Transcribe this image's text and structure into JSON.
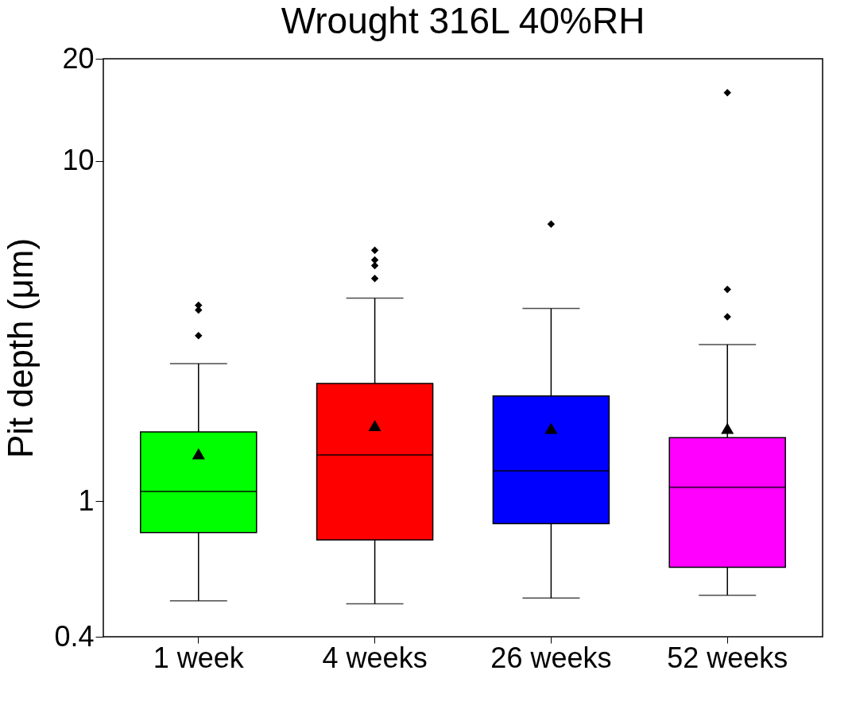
{
  "chart_data": {
    "type": "box",
    "title": "Wrought 316L 40%RH",
    "ylabel": "Pit depth (μm)",
    "categories": [
      "1 week",
      "4 weeks",
      "26 weeks",
      "52 weeks"
    ],
    "colors": [
      "#00ff00",
      "#ff0000",
      "#0000ff",
      "#ff00ff"
    ],
    "boxes": [
      {
        "low": 0.51,
        "q1": 0.81,
        "median": 1.07,
        "q3": 1.6,
        "high": 2.54,
        "mean": 1.38,
        "outliers": [
          3.77,
          3.65,
          3.07
        ]
      },
      {
        "low": 0.5,
        "q1": 0.77,
        "median": 1.37,
        "q3": 2.22,
        "high": 3.96,
        "mean": 1.67,
        "outliers": [
          5.47,
          5.12,
          4.93,
          4.52
        ]
      },
      {
        "low": 0.52,
        "q1": 0.86,
        "median": 1.23,
        "q3": 2.04,
        "high": 3.69,
        "mean": 1.64,
        "outliers": [
          6.53
        ]
      },
      {
        "low": 0.53,
        "q1": 0.64,
        "median": 1.1,
        "q3": 1.54,
        "high": 2.89,
        "mean": 1.64,
        "outliers": [
          15.9,
          4.2,
          3.49
        ]
      }
    ],
    "log": true,
    "ylim": [
      0.4,
      20
    ],
    "yticks": [
      0.4,
      1,
      10,
      20
    ],
    "grid": false,
    "legend": false,
    "marker": "diamond"
  }
}
